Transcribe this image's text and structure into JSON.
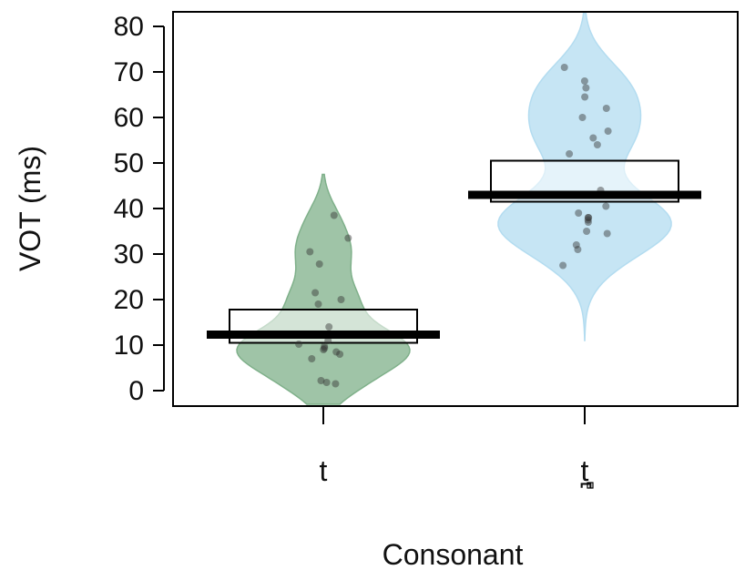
{
  "chart_data": {
    "type": "pirate",
    "xlabel": "Consonant",
    "ylabel": "VOT (ms)",
    "ylim": [
      0,
      80
    ],
    "yticks": [
      0,
      10,
      20,
      30,
      40,
      50,
      60,
      70,
      80
    ],
    "grid": false,
    "categories": [
      "t",
      "t̪"
    ],
    "series": [
      {
        "category": "t",
        "color": "#7fb08a",
        "mean": 12.3,
        "ci": [
          10.5,
          17.8
        ],
        "density_range": [
          -3,
          47.5
        ],
        "points": [
          1.5,
          1.8,
          2.2,
          7.0,
          8.0,
          8.5,
          9.0,
          9.3,
          9.7,
          10.2,
          11.0,
          14.0,
          19.0,
          20.0,
          21.5,
          27.8,
          30.5,
          33.5,
          38.5
        ]
      },
      {
        "category": "t̪",
        "color": "#b3dcf0",
        "mean": 43.0,
        "ci": [
          41.5,
          50.5
        ],
        "density_range": [
          11,
          83
        ],
        "points": [
          27.5,
          31.0,
          32.0,
          34.5,
          35.0,
          37.0,
          37.5,
          38.0,
          38.0,
          39.0,
          40.5,
          44.0,
          52.0,
          54.0,
          55.5,
          57.0,
          60.0,
          62.0,
          64.5,
          66.5,
          68.0,
          71.0
        ]
      }
    ]
  }
}
